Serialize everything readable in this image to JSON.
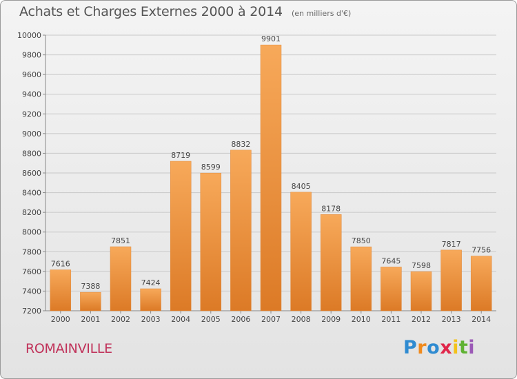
{
  "header": {
    "title": "Achats et Charges Externes 2000 à 2014",
    "subtitle": "(en milliers d'€)"
  },
  "footer": {
    "city": "ROMAINVILLE",
    "logo_text": "Proxiti"
  },
  "colors": {
    "bar_light": "#f7a95a",
    "bar_dark": "#dc7a26",
    "city": "#c0325a",
    "logo": [
      "#2f8bd1",
      "#f08a1d",
      "#2f8bd1",
      "#e0264a",
      "#f3c21b",
      "#5fb233",
      "#9b59b6"
    ]
  },
  "chart_data": {
    "type": "bar",
    "title": "Achats et Charges Externes 2000 à 2014",
    "subtitle": "(en milliers d'€)",
    "categories": [
      "2000",
      "2001",
      "2002",
      "2003",
      "2004",
      "2005",
      "2006",
      "2007",
      "2008",
      "2009",
      "2010",
      "2011",
      "2012",
      "2013",
      "2014"
    ],
    "values": [
      7616,
      7388,
      7851,
      7424,
      8719,
      8599,
      8832,
      9901,
      8405,
      8178,
      7850,
      7645,
      7598,
      7817,
      7756
    ],
    "ylim": [
      7200,
      10000
    ],
    "yticks": [
      7200,
      7400,
      7600,
      7800,
      8000,
      8200,
      8400,
      8600,
      8800,
      9000,
      9200,
      9400,
      9600,
      9800,
      10000
    ],
    "grid": true,
    "legend": "none"
  }
}
